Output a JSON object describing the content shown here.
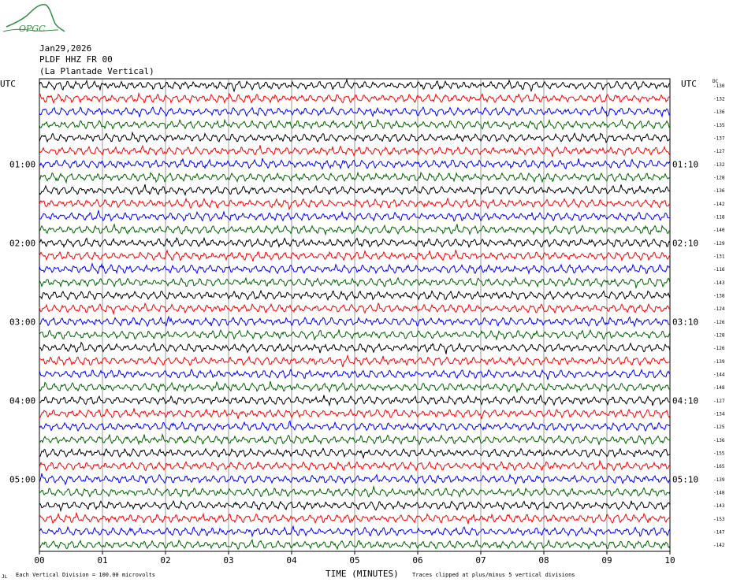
{
  "logo": {
    "text": "OPGC",
    "color": "#2f8f3f",
    "icon": "mountain-logo-icon"
  },
  "header": {
    "date": "Jan29,2026",
    "station": "PLDF HHZ FR 00",
    "station_name": "(La Plantade Vertical)"
  },
  "left_header": "UTC",
  "right_header": "UTC",
  "dc_header": "DC",
  "footer": {
    "left_mark": "JL",
    "scale_note": "Each Vertical Division =  100.00 microvolts",
    "clip_note": "Traces clipped at plus/minus 5 vertical divisions"
  },
  "chart_data": {
    "type": "line",
    "title": "",
    "xlabel": "TIME (MINUTES)",
    "ylabel": "",
    "xlim": [
      0,
      10
    ],
    "x_ticks": [
      "00",
      "01",
      "02",
      "03",
      "04",
      "05",
      "06",
      "07",
      "08",
      "09",
      "10"
    ],
    "row_count": 36,
    "trace_colors": [
      "#000000",
      "#ff0000",
      "#0000ff",
      "#006400"
    ],
    "left_time_labels": [
      {
        "row": 6,
        "label": "01:00"
      },
      {
        "row": 12,
        "label": "02:00"
      },
      {
        "row": 18,
        "label": "03:00"
      },
      {
        "row": 24,
        "label": "04:00"
      },
      {
        "row": 30,
        "label": "05:00"
      }
    ],
    "right_time_labels": [
      {
        "row": 6,
        "label": "01:10"
      },
      {
        "row": 12,
        "label": "02:10"
      },
      {
        "row": 18,
        "label": "03:10"
      },
      {
        "row": 24,
        "label": "04:10"
      },
      {
        "row": 30,
        "label": "05:10"
      }
    ],
    "dc_offsets": [
      "-130",
      "-132",
      "-136",
      "-135",
      "-137",
      "-127",
      "-132",
      "-128",
      "-136",
      "-142",
      "-118",
      "-140",
      "-129",
      "-131",
      "-116",
      "-143",
      "-138",
      "-124",
      "-126",
      "-128",
      "-126",
      "-139",
      "-144",
      "-148",
      "-127",
      "-134",
      "-125",
      "-136",
      "-155",
      "-165",
      "-139",
      "-148",
      "-143",
      "-153",
      "-147",
      "-142"
    ]
  }
}
